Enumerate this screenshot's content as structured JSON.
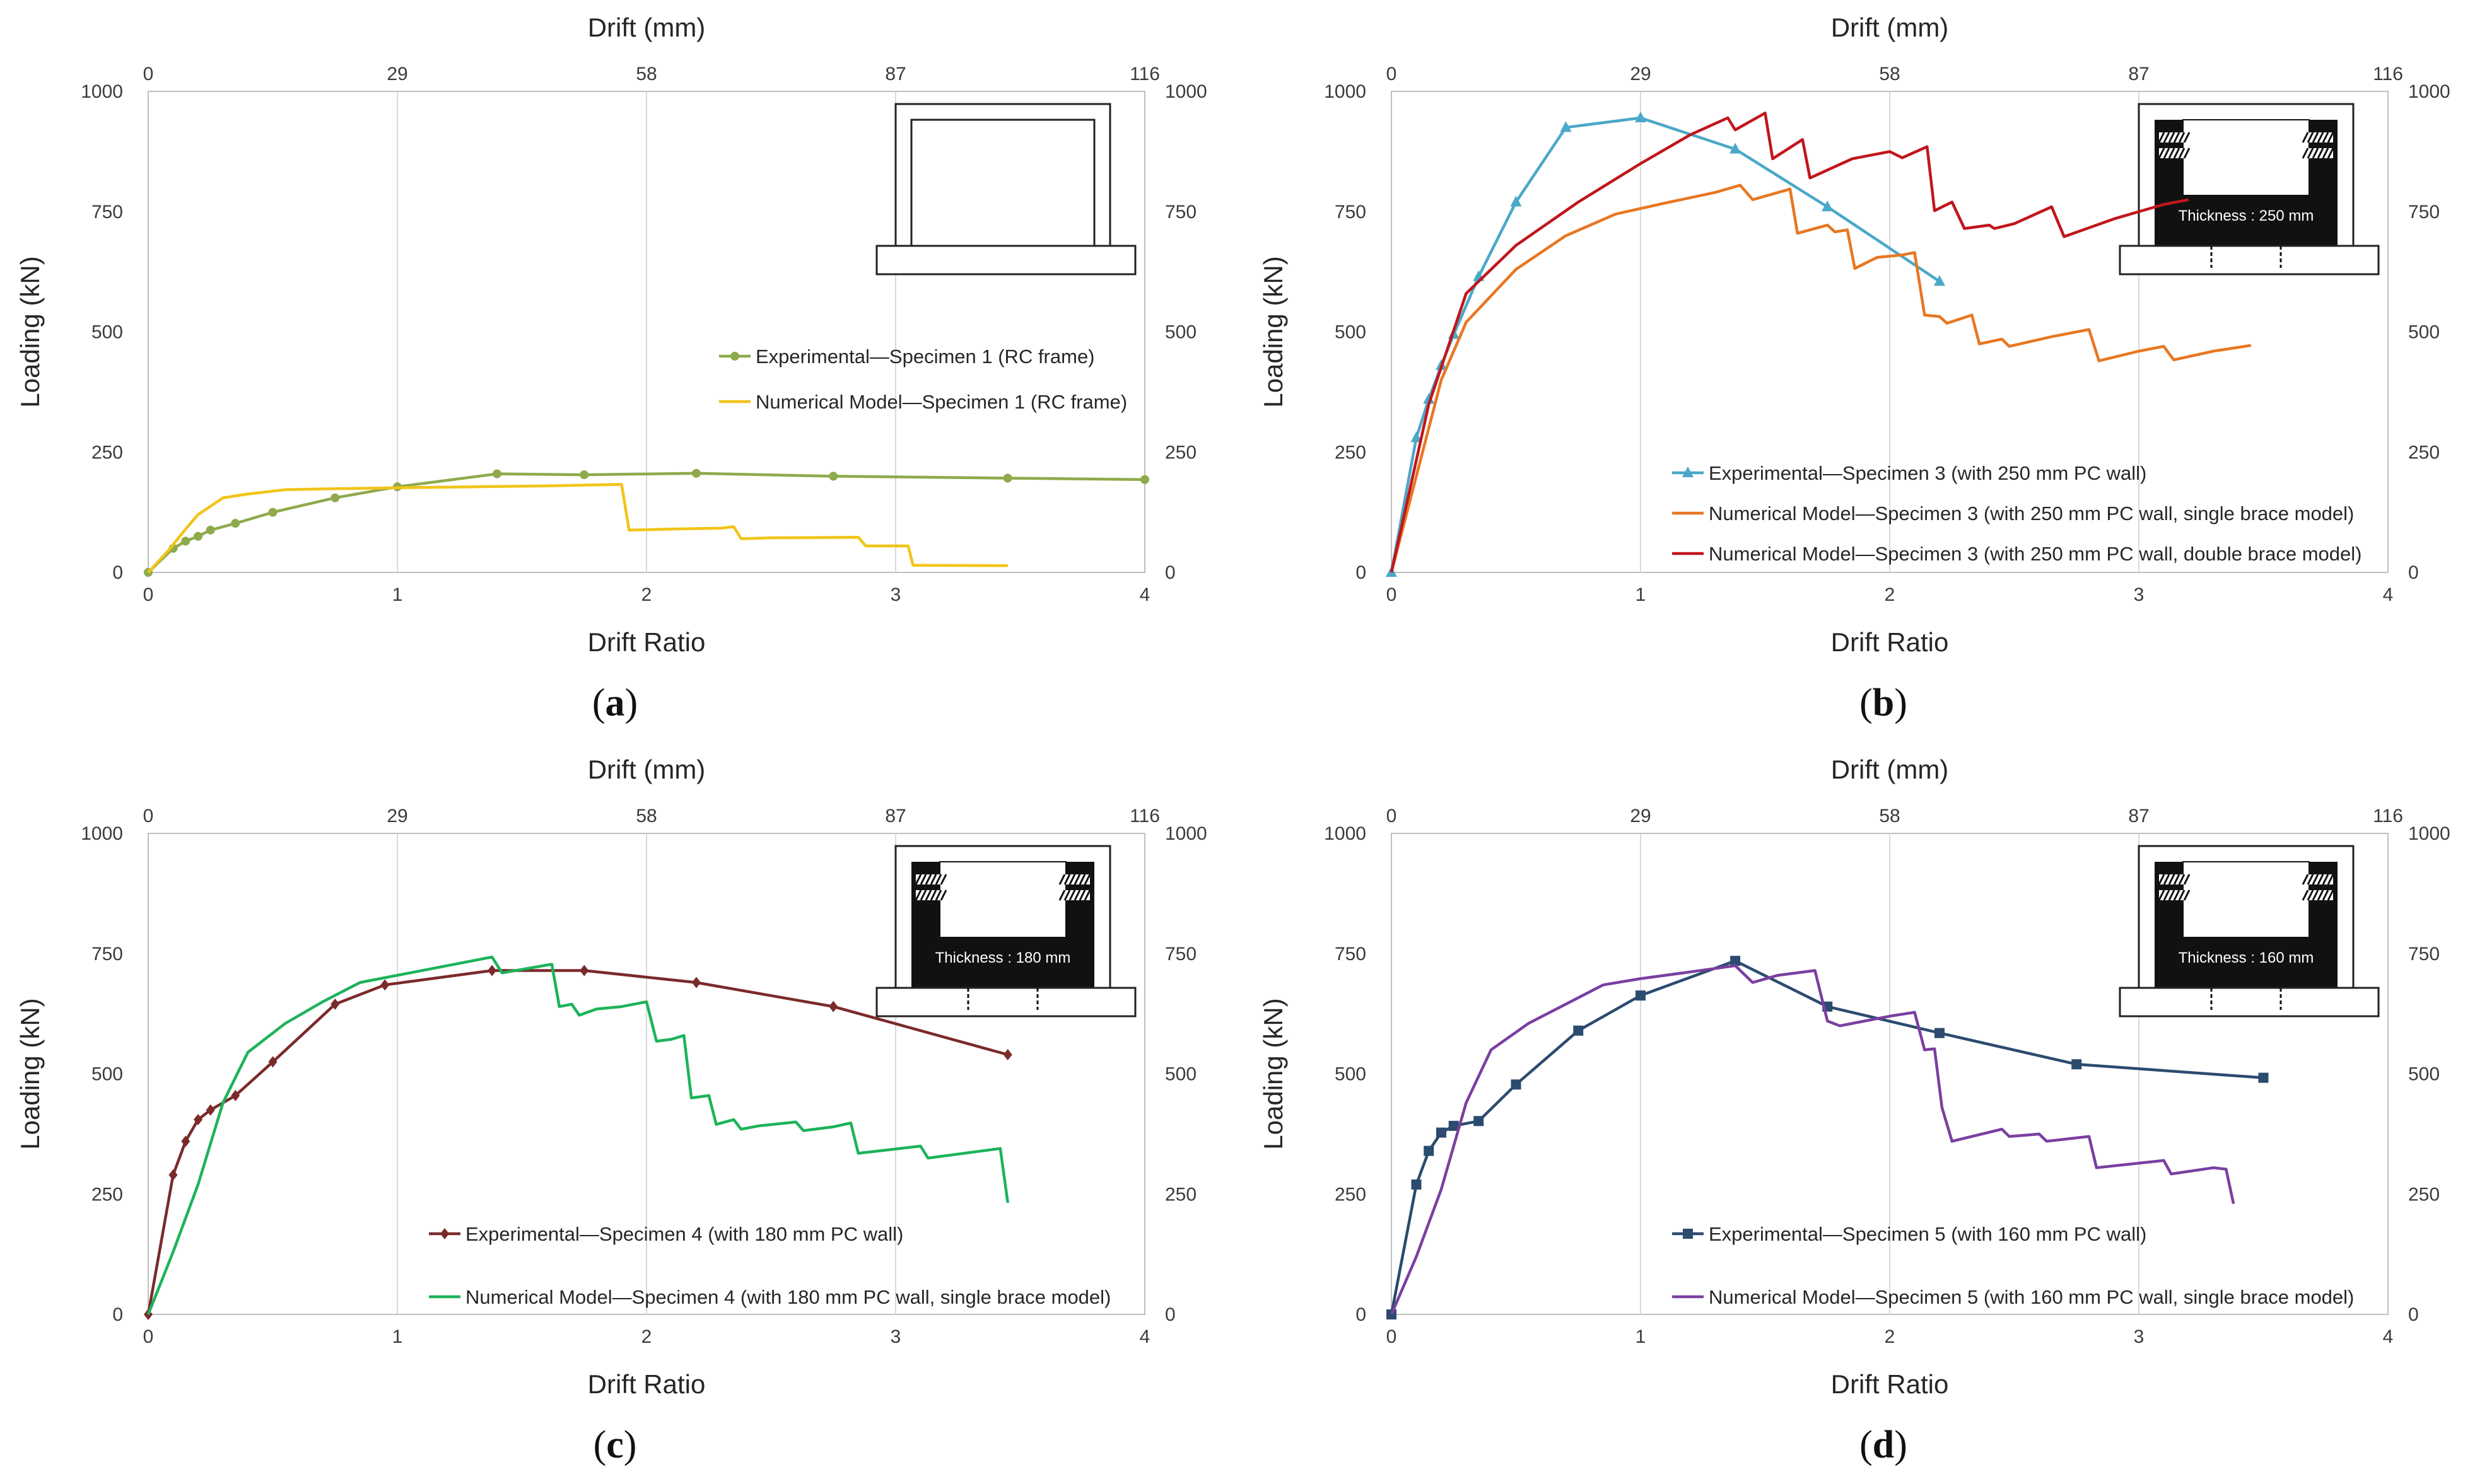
{
  "figure": {
    "colors": {
      "green_exp": "#8faa4c",
      "yellow_num": "#f2c418",
      "blue_exp": "#4aa8c8",
      "orange_num": "#e87722",
      "red_num": "#c0161c",
      "maroon_exp": "#7b2a2a",
      "green_num": "#1cb35a",
      "navy_exp": "#2b4b6f",
      "purple_num": "#7a3fa0",
      "axis": "#bfbfbf"
    }
  },
  "chart_data": [
    {
      "id": "a",
      "type": "line",
      "panel_label": "a",
      "xlabel": "Drift Ratio",
      "x2label": "Drift (mm)",
      "ylabel": "Loading (kN)",
      "xlim": [
        0,
        4
      ],
      "ylim": [
        0,
        1000
      ],
      "xticks": [
        "0",
        "1",
        "2",
        "3",
        "4"
      ],
      "x2ticks": [
        "0",
        "29",
        "58",
        "87",
        "116"
      ],
      "yticks": [
        "0",
        "250",
        "500",
        "750",
        "1000"
      ],
      "y2ticks": [
        "0",
        "250",
        "500",
        "750",
        "1000"
      ],
      "inset": {
        "kind": "frame",
        "note": ""
      },
      "legend_position": "right-middle",
      "series": [
        {
          "name": "Experimental—Specimen 1 (RC frame)",
          "color": "#8faa4c",
          "marker": "circle",
          "points": [
            [
              0,
              0
            ],
            [
              0.1,
              50
            ],
            [
              0.15,
              65
            ],
            [
              0.2,
              75
            ],
            [
              0.25,
              88
            ],
            [
              0.35,
              102
            ],
            [
              0.5,
              125
            ],
            [
              0.75,
              155
            ],
            [
              1.0,
              178
            ],
            [
              1.4,
              205
            ],
            [
              1.75,
              203
            ],
            [
              2.2,
              206
            ],
            [
              2.75,
              200
            ],
            [
              3.45,
              196
            ],
            [
              4.0,
              193
            ]
          ]
        },
        {
          "name": "Numerical Model—Specimen 1 (RC frame)",
          "color": "#f2c418",
          "marker": "none",
          "points": [
            [
              0,
              0
            ],
            [
              0.08,
              45
            ],
            [
              0.15,
              90
            ],
            [
              0.2,
              120
            ],
            [
              0.3,
              155
            ],
            [
              0.4,
              163
            ],
            [
              0.55,
              172
            ],
            [
              0.75,
              174
            ],
            [
              1.0,
              176
            ],
            [
              1.3,
              178
            ],
            [
              1.6,
              180
            ],
            [
              1.9,
              183
            ],
            [
              1.93,
              88
            ],
            [
              2.1,
              90
            ],
            [
              2.3,
              92
            ],
            [
              2.35,
              95
            ],
            [
              2.38,
              70
            ],
            [
              2.5,
              72
            ],
            [
              2.85,
              73
            ],
            [
              2.88,
              55
            ],
            [
              3.05,
              55
            ],
            [
              3.07,
              15
            ],
            [
              3.45,
              14
            ]
          ]
        }
      ]
    },
    {
      "id": "b",
      "type": "line",
      "panel_label": "b",
      "xlabel": "Drift Ratio",
      "x2label": "Drift (mm)",
      "ylabel": "Loading (kN)",
      "xlim": [
        0,
        4
      ],
      "ylim": [
        0,
        1000
      ],
      "xticks": [
        "0",
        "1",
        "2",
        "3",
        "4"
      ],
      "x2ticks": [
        "0",
        "29",
        "58",
        "87",
        "116"
      ],
      "yticks": [
        "0",
        "250",
        "500",
        "750",
        "1000"
      ],
      "y2ticks": [
        "0",
        "250",
        "500",
        "750",
        "1000"
      ],
      "inset": {
        "kind": "wall",
        "note": "Thickness : 250 mm"
      },
      "legend_position": "bottom-center",
      "series": [
        {
          "name": "Experimental—Specimen 3 (with 250 mm PC wall)",
          "color": "#4aa8c8",
          "marker": "triangle",
          "points": [
            [
              0,
              0
            ],
            [
              0.1,
              280
            ],
            [
              0.15,
              360
            ],
            [
              0.2,
              430
            ],
            [
              0.25,
              495
            ],
            [
              0.35,
              615
            ],
            [
              0.5,
              770
            ],
            [
              0.7,
              925
            ],
            [
              1.0,
              945
            ],
            [
              1.38,
              880
            ],
            [
              1.75,
              760
            ],
            [
              2.2,
              605
            ]
          ]
        },
        {
          "name": "Numerical Model—Specimen 3 (with 250 mm PC wall, single brace model)",
          "color": "#e87722",
          "marker": "none",
          "points": [
            [
              0,
              0
            ],
            [
              0.1,
              200
            ],
            [
              0.2,
              400
            ],
            [
              0.3,
              520
            ],
            [
              0.5,
              630
            ],
            [
              0.7,
              700
            ],
            [
              0.9,
              745
            ],
            [
              1.1,
              768
            ],
            [
              1.3,
              790
            ],
            [
              1.4,
              805
            ],
            [
              1.45,
              775
            ],
            [
              1.6,
              797
            ],
            [
              1.63,
              705
            ],
            [
              1.75,
              722
            ],
            [
              1.78,
              708
            ],
            [
              1.83,
              712
            ],
            [
              1.86,
              632
            ],
            [
              1.95,
              655
            ],
            [
              2.05,
              660
            ],
            [
              2.1,
              665
            ],
            [
              2.14,
              535
            ],
            [
              2.2,
              532
            ],
            [
              2.23,
              518
            ],
            [
              2.33,
              535
            ],
            [
              2.36,
              475
            ],
            [
              2.45,
              485
            ],
            [
              2.48,
              470
            ],
            [
              2.65,
              490
            ],
            [
              2.8,
              505
            ],
            [
              2.84,
              440
            ],
            [
              3.0,
              460
            ],
            [
              3.1,
              470
            ],
            [
              3.14,
              442
            ],
            [
              3.3,
              460
            ],
            [
              3.45,
              472
            ]
          ]
        },
        {
          "name": "Numerical Model—Specimen 3 (with 250 mm PC wall, double brace model)",
          "color": "#c0161c",
          "marker": "none",
          "points": [
            [
              0,
              0
            ],
            [
              0.15,
              350
            ],
            [
              0.3,
              580
            ],
            [
              0.5,
              680
            ],
            [
              0.75,
              770
            ],
            [
              1.0,
              850
            ],
            [
              1.2,
              910
            ],
            [
              1.35,
              945
            ],
            [
              1.38,
              920
            ],
            [
              1.5,
              955
            ],
            [
              1.53,
              860
            ],
            [
              1.65,
              900
            ],
            [
              1.68,
              820
            ],
            [
              1.85,
              860
            ],
            [
              2.0,
              875
            ],
            [
              2.05,
              862
            ],
            [
              2.15,
              885
            ],
            [
              2.18,
              752
            ],
            [
              2.25,
              770
            ],
            [
              2.3,
              715
            ],
            [
              2.4,
              722
            ],
            [
              2.42,
              715
            ],
            [
              2.5,
              725
            ],
            [
              2.65,
              760
            ],
            [
              2.7,
              698
            ],
            [
              2.9,
              735
            ],
            [
              3.1,
              765
            ],
            [
              3.2,
              775
            ]
          ]
        }
      ]
    },
    {
      "id": "c",
      "type": "line",
      "panel_label": "c",
      "xlabel": "Drift Ratio",
      "x2label": "Drift (mm)",
      "ylabel": "Loading (kN)",
      "xlim": [
        0,
        4
      ],
      "ylim": [
        0,
        1000
      ],
      "xticks": [
        "0",
        "1",
        "2",
        "3",
        "4"
      ],
      "x2ticks": [
        "0",
        "29",
        "58",
        "87",
        "116"
      ],
      "yticks": [
        "0",
        "250",
        "500",
        "750",
        "1000"
      ],
      "y2ticks": [
        "0",
        "250",
        "500",
        "750",
        "1000"
      ],
      "inset": {
        "kind": "wall",
        "note": "Thickness : 180 mm"
      },
      "legend_position": "bottom-center",
      "series": [
        {
          "name": "Experimental—Specimen 4 (with 180 mm PC wall)",
          "color": "#7b2a2a",
          "marker": "diamond",
          "points": [
            [
              0,
              0
            ],
            [
              0.1,
              290
            ],
            [
              0.15,
              360
            ],
            [
              0.2,
              405
            ],
            [
              0.25,
              425
            ],
            [
              0.35,
              455
            ],
            [
              0.5,
              525
            ],
            [
              0.75,
              645
            ],
            [
              0.95,
              685
            ],
            [
              1.38,
              715
            ],
            [
              1.75,
              715
            ],
            [
              2.2,
              690
            ],
            [
              2.75,
              640
            ],
            [
              3.45,
              540
            ]
          ]
        },
        {
          "name": "Numerical Model—Specimen 4 (with 180 mm PC wall, single brace model)",
          "color": "#1cb35a",
          "marker": "none",
          "points": [
            [
              0,
              0
            ],
            [
              0.1,
              130
            ],
            [
              0.2,
              270
            ],
            [
              0.3,
              440
            ],
            [
              0.4,
              545
            ],
            [
              0.55,
              605
            ],
            [
              0.7,
              650
            ],
            [
              0.85,
              690
            ],
            [
              1.0,
              705
            ],
            [
              1.2,
              725
            ],
            [
              1.38,
              743
            ],
            [
              1.42,
              710
            ],
            [
              1.62,
              728
            ],
            [
              1.65,
              640
            ],
            [
              1.7,
              645
            ],
            [
              1.73,
              622
            ],
            [
              1.8,
              635
            ],
            [
              1.9,
              640
            ],
            [
              2.0,
              650
            ],
            [
              2.04,
              568
            ],
            [
              2.1,
              572
            ],
            [
              2.15,
              580
            ],
            [
              2.18,
              450
            ],
            [
              2.25,
              455
            ],
            [
              2.28,
              395
            ],
            [
              2.35,
              405
            ],
            [
              2.38,
              385
            ],
            [
              2.45,
              392
            ],
            [
              2.6,
              400
            ],
            [
              2.63,
              382
            ],
            [
              2.75,
              390
            ],
            [
              2.82,
              398
            ],
            [
              2.85,
              335
            ],
            [
              3.1,
              350
            ],
            [
              3.13,
              325
            ],
            [
              3.42,
              345
            ],
            [
              3.45,
              232
            ]
          ]
        }
      ]
    },
    {
      "id": "d",
      "type": "line",
      "panel_label": "d",
      "xlabel": "Drift Ratio",
      "x2label": "Drift (mm)",
      "ylabel": "Loading (kN)",
      "xlim": [
        0,
        4
      ],
      "ylim": [
        0,
        1000
      ],
      "xticks": [
        "0",
        "1",
        "2",
        "3",
        "4"
      ],
      "x2ticks": [
        "0",
        "29",
        "58",
        "87",
        "116"
      ],
      "yticks": [
        "0",
        "250",
        "500",
        "750",
        "1000"
      ],
      "y2ticks": [
        "0",
        "250",
        "500",
        "750",
        "1000"
      ],
      "inset": {
        "kind": "wall",
        "note": "Thickness : 160 mm"
      },
      "legend_position": "bottom-center",
      "series": [
        {
          "name": "Experimental—Specimen 5 (with 160 mm PC wall)",
          "color": "#2b4b6f",
          "marker": "square",
          "points": [
            [
              0,
              0
            ],
            [
              0.1,
              270
            ],
            [
              0.15,
              340
            ],
            [
              0.2,
              378
            ],
            [
              0.25,
              392
            ],
            [
              0.35,
              402
            ],
            [
              0.5,
              478
            ],
            [
              0.75,
              590
            ],
            [
              1.0,
              663
            ],
            [
              1.38,
              735
            ],
            [
              1.75,
              640
            ],
            [
              2.2,
              585
            ],
            [
              2.75,
              520
            ],
            [
              3.5,
              492
            ]
          ]
        },
        {
          "name": "Numerical Model—Specimen 5 (with 160 mm PC wall, single brace model)",
          "color": "#7a3fa0",
          "marker": "none",
          "points": [
            [
              0,
              0
            ],
            [
              0.1,
              120
            ],
            [
              0.2,
              260
            ],
            [
              0.3,
              440
            ],
            [
              0.4,
              550
            ],
            [
              0.55,
              605
            ],
            [
              0.7,
              645
            ],
            [
              0.85,
              685
            ],
            [
              1.0,
              698
            ],
            [
              1.2,
              712
            ],
            [
              1.38,
              725
            ],
            [
              1.45,
              690
            ],
            [
              1.55,
              705
            ],
            [
              1.7,
              715
            ],
            [
              1.75,
              610
            ],
            [
              1.8,
              600
            ],
            [
              2.0,
              620
            ],
            [
              2.1,
              628
            ],
            [
              2.14,
              550
            ],
            [
              2.18,
              552
            ],
            [
              2.21,
              430
            ],
            [
              2.25,
              360
            ],
            [
              2.45,
              385
            ],
            [
              2.48,
              370
            ],
            [
              2.6,
              375
            ],
            [
              2.63,
              360
            ],
            [
              2.8,
              370
            ],
            [
              2.83,
              305
            ],
            [
              3.1,
              320
            ],
            [
              3.13,
              292
            ],
            [
              3.3,
              305
            ],
            [
              3.35,
              302
            ],
            [
              3.38,
              230
            ]
          ]
        }
      ]
    }
  ]
}
